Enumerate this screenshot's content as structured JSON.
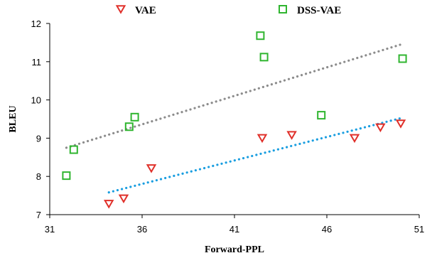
{
  "chart_data": {
    "type": "scatter",
    "title": "",
    "xlabel": "Forward-PPL",
    "ylabel": "BLEU",
    "xlim": [
      31,
      51
    ],
    "ylim": [
      7,
      12
    ],
    "xticks": [
      31,
      36,
      41,
      46,
      51
    ],
    "yticks": [
      7,
      8,
      9,
      10,
      11,
      12
    ],
    "grid": false,
    "legend": "top",
    "series": [
      {
        "name": "VAE",
        "marker": "triangle-down",
        "color": "#e0302a",
        "trendline": true,
        "trend_color": "#1a9ee0",
        "x": [
          34.2,
          35.0,
          36.5,
          42.5,
          44.1,
          47.5,
          48.9,
          50.0
        ],
        "y": [
          7.28,
          7.42,
          8.21,
          9.0,
          9.08,
          9.0,
          9.28,
          9.38
        ]
      },
      {
        "name": "DSS-VAE",
        "marker": "square",
        "color": "#2fb52f",
        "trendline": true,
        "trend_color": "#8c8c8c",
        "x": [
          31.9,
          32.3,
          35.3,
          35.6,
          42.4,
          42.6,
          45.7,
          50.1
        ],
        "y": [
          8.02,
          8.7,
          9.3,
          9.55,
          11.68,
          11.12,
          9.6,
          11.08
        ]
      }
    ]
  }
}
